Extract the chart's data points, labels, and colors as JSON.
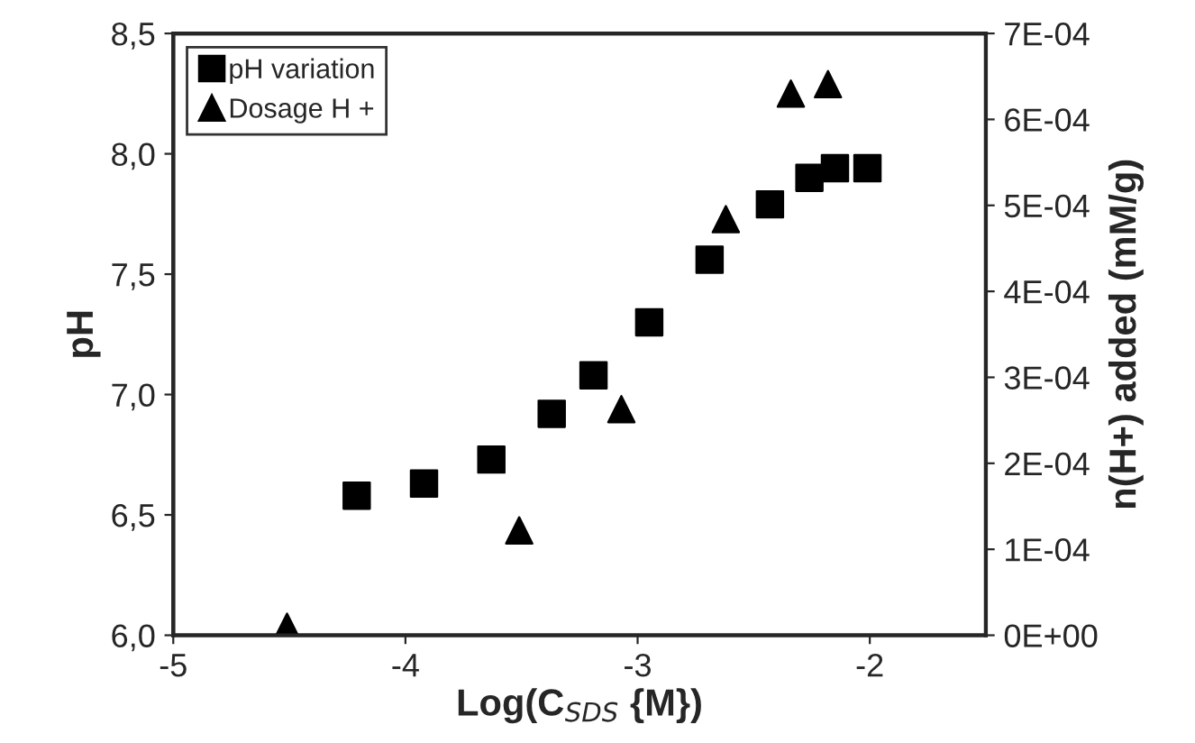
{
  "chart_data": {
    "type": "scatter",
    "xlabel": "Log(C$_{SDS}$ {M})",
    "ylabel": "pH",
    "y2label": "n(H+) added (mM/g)",
    "xlim": [
      -5,
      -1.5
    ],
    "xticks": [
      -5,
      -4,
      -3,
      -2
    ],
    "ylim": [
      6.0,
      8.5
    ],
    "yticks": [
      {
        "value": 6.0,
        "label": "6,0"
      },
      {
        "value": 6.5,
        "label": "6,5"
      },
      {
        "value": 7.0,
        "label": "7,0"
      },
      {
        "value": 7.5,
        "label": "7,5"
      },
      {
        "value": 8.0,
        "label": "8,0"
      },
      {
        "value": 8.5,
        "label": "8,5"
      }
    ],
    "y2lim": [
      0,
      0.0007
    ],
    "y2ticks": [
      {
        "value": 0,
        "label": "0E+00"
      },
      {
        "value": 0.0001,
        "label": "1E-04"
      },
      {
        "value": 0.0002,
        "label": "2E-04"
      },
      {
        "value": 0.0003,
        "label": "3E-04"
      },
      {
        "value": 0.0004,
        "label": "4E-04"
      },
      {
        "value": 0.0005,
        "label": "5E-04"
      },
      {
        "value": 0.0006,
        "label": "6E-04"
      },
      {
        "value": 0.0007,
        "label": "7E-04"
      }
    ],
    "grid": false,
    "legend": "top left",
    "series": [
      {
        "name": "pH variation",
        "color": "#000000",
        "marker": "square",
        "x": [
          -4.21,
          -3.92,
          -3.63,
          -3.37,
          -3.19,
          -2.95,
          -2.69,
          -2.43,
          -2.26,
          -2.15,
          -2.07,
          -2.01
        ],
        "values": [
          6.58,
          6.63,
          6.73,
          6.92,
          7.08,
          7.3,
          7.56,
          7.79,
          7.9,
          7.94,
          null,
          7.94
        ]
      },
      {
        "name": "Dosage H +",
        "color": "#000000",
        "marker": "triangle",
        "axis": "y2",
        "x": [
          -4.51,
          -3.51,
          -3.07,
          -2.62,
          -2.34,
          -2.18
        ],
        "values": [
          1e-05,
          0.000122,
          0.000263,
          0.000484,
          0.00063,
          0.000641
        ]
      }
    ]
  }
}
